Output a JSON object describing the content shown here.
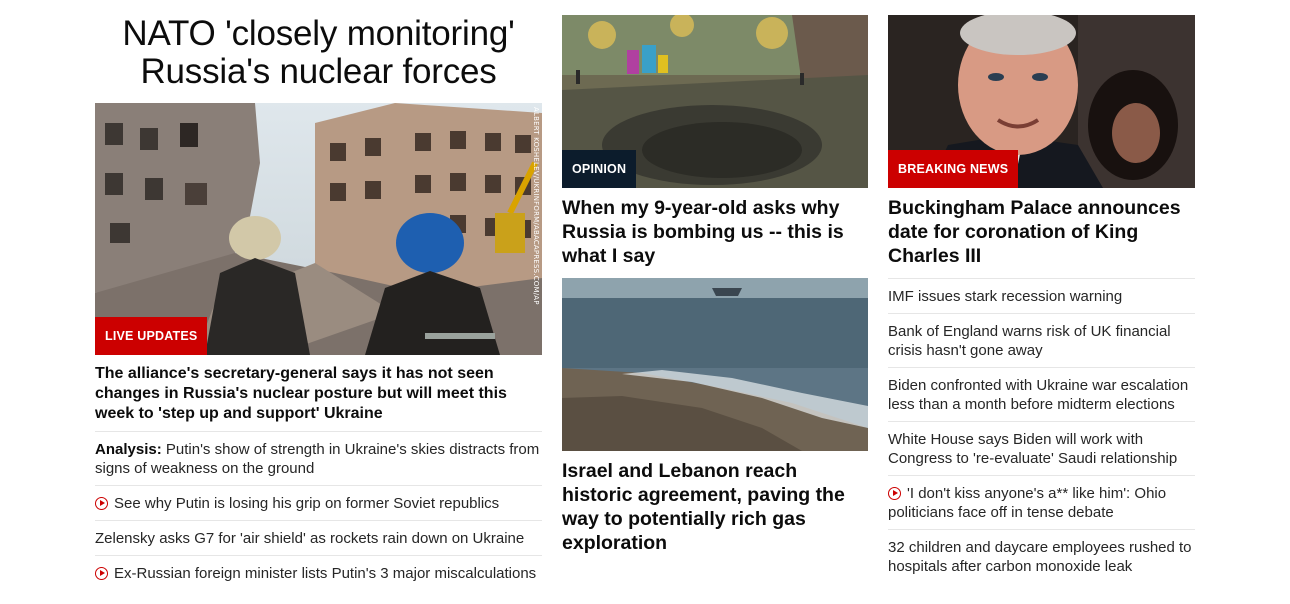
{
  "lead": {
    "headline": "NATO 'closely monitoring' Russia's nuclear forces",
    "image_label": "LIVE UPDATES",
    "photo_credit": "ALBERT KOSHELEV/UKRINFORM/ABACAPRESS.COM/AP",
    "subheadline": "The alliance's secretary-general says it has not seen changes in Russia's nuclear posture but will meet this week to 'step up and support' Ukraine",
    "related": [
      {
        "prefix": "Analysis:",
        "text": "Putin's show of strength in Ukraine's skies distracts from signs of weakness on the ground"
      },
      {
        "video": true,
        "text": "See why Putin is losing his grip on former Soviet republics"
      },
      {
        "text": "Zelensky asks G7 for 'air shield' as rockets rain down on Ukraine"
      },
      {
        "video": true,
        "text": "Ex-Russian foreign minister lists Putin's 3 major miscalculations"
      }
    ]
  },
  "middle": {
    "story1": {
      "label": "OPINION",
      "title": "When my 9-year-old asks why Russia is bombing us -- this is what I say"
    },
    "story2": {
      "title": "Israel and Lebanon reach historic agreement, paving the way to potentially rich gas exploration"
    }
  },
  "right": {
    "story": {
      "label": "BREAKING NEWS",
      "title": "Buckingham Palace announces date for coronation of King Charles III"
    },
    "list": [
      {
        "text": "IMF issues stark recession warning"
      },
      {
        "text": "Bank of England warns risk of UK financial crisis hasn't gone away"
      },
      {
        "text": "Biden confronted with Ukraine war escalation less than a month before midterm elections"
      },
      {
        "text": "White House says Biden will work with Congress to 're-evaluate' Saudi relationship"
      },
      {
        "video": true,
        "text": "'I don't kiss anyone's a** like him': Ohio politicians face off in tense debate"
      },
      {
        "text": "32 children and daycare employees rushed to hospitals after carbon monoxide leak"
      }
    ]
  },
  "colors": {
    "accent_red": "#cc0000",
    "opinion_dark": "#0c1c2c",
    "divider": "#e6e6e6"
  },
  "icons": {
    "video": "play-circle-icon"
  }
}
